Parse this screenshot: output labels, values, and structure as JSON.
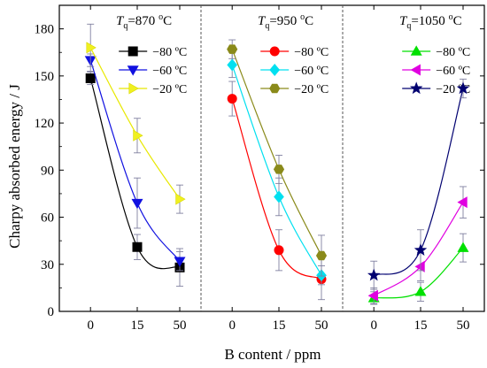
{
  "chart_data": {
    "type": "scatter",
    "xlabel": "B content / ppm",
    "ylabel": "Charpy absorbed energy / J",
    "ylim": [
      0,
      195
    ],
    "yticks": [
      0,
      30,
      60,
      90,
      120,
      150,
      180
    ],
    "x_categories": [
      "0",
      "15",
      "50"
    ],
    "grid": false,
    "panels": [
      {
        "label_main": "T",
        "label_sub": "q",
        "label_value": "=870 ",
        "label_deg": "o",
        "label_unit": "C",
        "legend_position": "upper-right",
        "series": [
          {
            "name": "−80 ºC",
            "marker": "square",
            "color": "#000000",
            "values": [
              148.5,
              41,
              28
            ],
            "errors": [
              4,
              8,
              12
            ]
          },
          {
            "name": "−60 ºC",
            "marker": "triangle-down",
            "color": "#1010e0",
            "values": [
              160,
              69,
              32
            ],
            "errors": [
              4,
              16,
              6
            ]
          },
          {
            "name": "−20 ºC",
            "marker": "triangle-right",
            "color": "#f0f020",
            "values": [
              168,
              112,
              71.5
            ],
            "errors": [
              15,
              11,
              9
            ]
          }
        ]
      },
      {
        "label_main": "T",
        "label_sub": "q",
        "label_value": "=950 ",
        "label_deg": "o",
        "label_unit": "C",
        "legend_position": "upper-right",
        "series": [
          {
            "name": "−80 ºC",
            "marker": "circle",
            "color": "#ff0000",
            "values": [
              135.5,
              39,
              20.5
            ],
            "errors": [
              11,
              13,
              13
            ]
          },
          {
            "name": "−60 ºC",
            "marker": "diamond",
            "color": "#00e0f0",
            "values": [
              157,
              73,
              23
            ],
            "errors": [
              8,
              12,
              6
            ]
          },
          {
            "name": "−20 ºC",
            "marker": "hexagon",
            "color": "#8a8a1a",
            "values": [
              167,
              90.5,
              35.5
            ],
            "errors": [
              6,
              9,
              13
            ]
          }
        ]
      },
      {
        "label_main": "T",
        "label_sub": "q",
        "label_value": "=1050 ",
        "label_deg": "o",
        "label_unit": "C",
        "legend_position": "upper-right",
        "series": [
          {
            "name": "−80 ºC",
            "marker": "triangle-up",
            "color": "#00e000",
            "values": [
              8.5,
              12.5,
              40.5
            ],
            "errors": [
              4,
              6,
              9
            ]
          },
          {
            "name": "−60 ºC",
            "marker": "triangle-left",
            "color": "#e000e0",
            "values": [
              10,
              28.5,
              69.5
            ],
            "errors": [
              5,
              9,
              10
            ]
          },
          {
            "name": "−20 ºC",
            "marker": "star",
            "color": "#000070",
            "values": [
              23,
              39,
              142
            ],
            "errors": [
              9,
              13,
              6
            ]
          }
        ]
      }
    ]
  }
}
